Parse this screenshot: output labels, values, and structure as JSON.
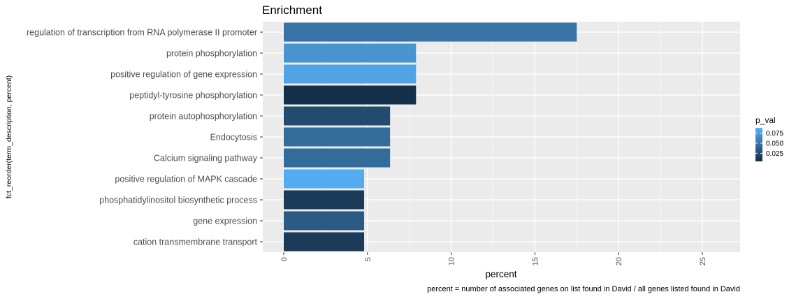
{
  "chart_data": {
    "type": "bar",
    "orientation": "horizontal",
    "title": "Enrichment",
    "xlabel": "percent",
    "ylabel": "fct_reorder(term_description, percent)",
    "caption": "percent = number of associated genes on list found in David / all genes listed found in David",
    "xlim": [
      0,
      26
    ],
    "x_ticks": [
      0,
      5,
      10,
      15,
      20,
      25
    ],
    "x_tick_labels": [
      "0",
      "5",
      "10",
      "15",
      "20",
      "25"
    ],
    "grid": true,
    "categories": [
      "regulation of transcription from RNA polymerase II promoter",
      "protein phosphorylation",
      "positive regulation of gene expression",
      "peptidyl-tyrosine phosphorylation",
      "protein autophosphorylation",
      "Endocytosis",
      "Calcium signaling pathway",
      "positive regulation of MAPK cascade",
      "phosphatidylinositol biosynthetic process",
      "gene expression",
      "cation transmembrane transport"
    ],
    "values": [
      17.5,
      7.9,
      7.9,
      7.9,
      6.35,
      6.35,
      6.35,
      4.8,
      4.8,
      4.8,
      4.8
    ],
    "p_val": [
      0.05,
      0.07,
      0.08,
      0.008,
      0.025,
      0.045,
      0.045,
      0.085,
      0.015,
      0.035,
      0.015
    ],
    "legend": {
      "title": "p_val",
      "position": "right",
      "ticks": [
        0.075,
        0.05,
        0.025
      ],
      "tick_labels": [
        "0.075",
        "0.050",
        "0.025"
      ],
      "range": [
        0.005,
        0.088
      ],
      "low_color": "#132b43",
      "high_color": "#56b1f7"
    },
    "panel_background": "#ebebeb",
    "grid_color": "#ffffff"
  }
}
